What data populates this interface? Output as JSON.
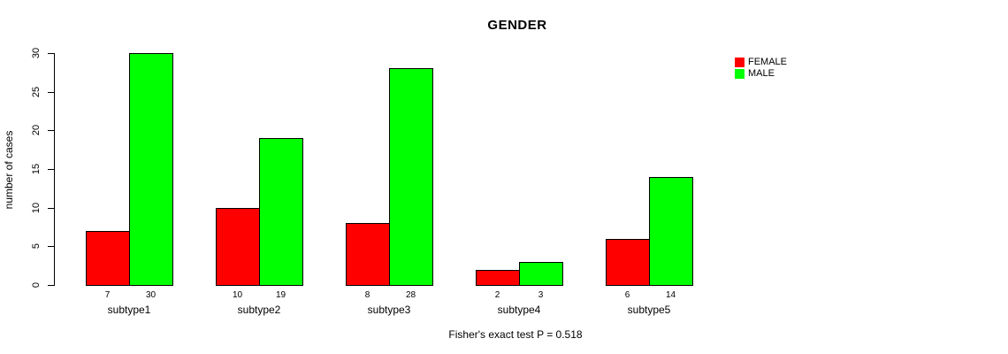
{
  "chart_data": {
    "type": "bar",
    "title": "GENDER",
    "categories": [
      "subtype1",
      "subtype2",
      "subtype3",
      "subtype4",
      "subtype5"
    ],
    "series": [
      {
        "name": "FEMALE",
        "color": "#FF0000",
        "values": [
          7,
          10,
          8,
          2,
          6
        ]
      },
      {
        "name": "MALE",
        "color": "#00FF00",
        "values": [
          30,
          19,
          28,
          3,
          14
        ]
      }
    ],
    "xlabel": "",
    "ylabel": "number of cases",
    "ylim": [
      0,
      30
    ],
    "yticks": [
      0,
      5,
      10,
      15,
      20,
      25,
      30
    ],
    "grid": "off",
    "legend_position": "top-right",
    "bar_value_labels": [
      [
        "7",
        "30"
      ],
      [
        "10",
        "19"
      ],
      [
        "8",
        "28"
      ],
      [
        "2",
        "3"
      ],
      [
        "6",
        "14"
      ]
    ],
    "footer": "Fisher's exact test P = 0.518"
  }
}
